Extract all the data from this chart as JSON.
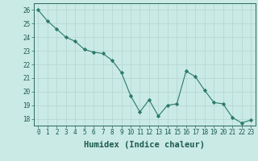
{
  "x": [
    0,
    1,
    2,
    3,
    4,
    5,
    6,
    7,
    8,
    9,
    10,
    11,
    12,
    13,
    14,
    15,
    16,
    17,
    18,
    19,
    20,
    21,
    22,
    23
  ],
  "y": [
    26,
    25.2,
    24.6,
    24.0,
    23.7,
    23.1,
    22.9,
    22.8,
    22.3,
    21.4,
    19.7,
    18.5,
    19.4,
    18.2,
    19.0,
    19.1,
    21.5,
    21.1,
    20.1,
    19.2,
    19.1,
    18.1,
    17.7,
    17.9
  ],
  "line_color": "#2a7a6a",
  "marker": "D",
  "marker_size": 2.2,
  "bg_color": "#caeae6",
  "grid_color": "#b8d8d4",
  "xlabel": "Humidex (Indice chaleur)",
  "ylim": [
    17.5,
    26.5
  ],
  "xlim": [
    -0.5,
    23.5
  ],
  "yticks": [
    18,
    19,
    20,
    21,
    22,
    23,
    24,
    25,
    26
  ],
  "xticks": [
    0,
    1,
    2,
    3,
    4,
    5,
    6,
    7,
    8,
    9,
    10,
    11,
    12,
    13,
    14,
    15,
    16,
    17,
    18,
    19,
    20,
    21,
    22,
    23
  ],
  "tick_label_fontsize": 5.5,
  "xlabel_fontsize": 7.5,
  "tick_color": "#2a6a5a",
  "label_color": "#1a5a4a"
}
